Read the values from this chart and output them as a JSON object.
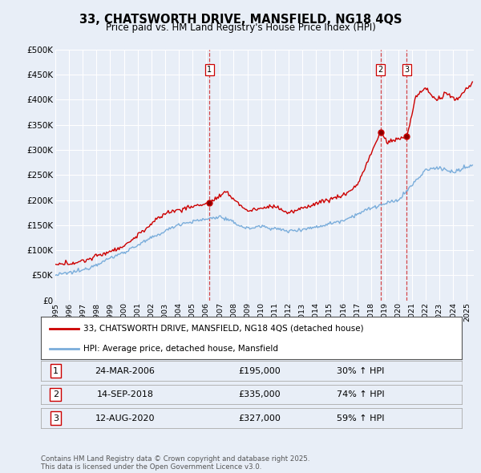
{
  "title": "33, CHATSWORTH DRIVE, MANSFIELD, NG18 4QS",
  "subtitle": "Price paid vs. HM Land Registry's House Price Index (HPI)",
  "ylim": [
    0,
    500000
  ],
  "yticks": [
    0,
    50000,
    100000,
    150000,
    200000,
    250000,
    300000,
    350000,
    400000,
    450000,
    500000
  ],
  "ytick_labels": [
    "£0",
    "£50K",
    "£100K",
    "£150K",
    "£200K",
    "£250K",
    "£300K",
    "£350K",
    "£400K",
    "£450K",
    "£500K"
  ],
  "xlim_start": 1995.0,
  "xlim_end": 2025.5,
  "bg_color": "#e8eef7",
  "plot_bg_color": "#e8eef7",
  "grid_color": "#ffffff",
  "red_color": "#cc0000",
  "blue_color": "#7aaddb",
  "transactions": [
    {
      "num": 1,
      "date": "24-MAR-2006",
      "price": 195000,
      "pct": "30%",
      "dir": "↑",
      "x": 2006.22
    },
    {
      "num": 2,
      "date": "14-SEP-2018",
      "price": 335000,
      "pct": "74%",
      "dir": "↑",
      "x": 2018.71
    },
    {
      "num": 3,
      "date": "12-AUG-2020",
      "price": 327000,
      "pct": "59%",
      "dir": "↑",
      "x": 2020.62
    }
  ],
  "legend_entry1": "33, CHATSWORTH DRIVE, MANSFIELD, NG18 4QS (detached house)",
  "legend_entry2": "HPI: Average price, detached house, Mansfield",
  "footer": "Contains HM Land Registry data © Crown copyright and database right 2025.\nThis data is licensed under the Open Government Licence v3.0."
}
